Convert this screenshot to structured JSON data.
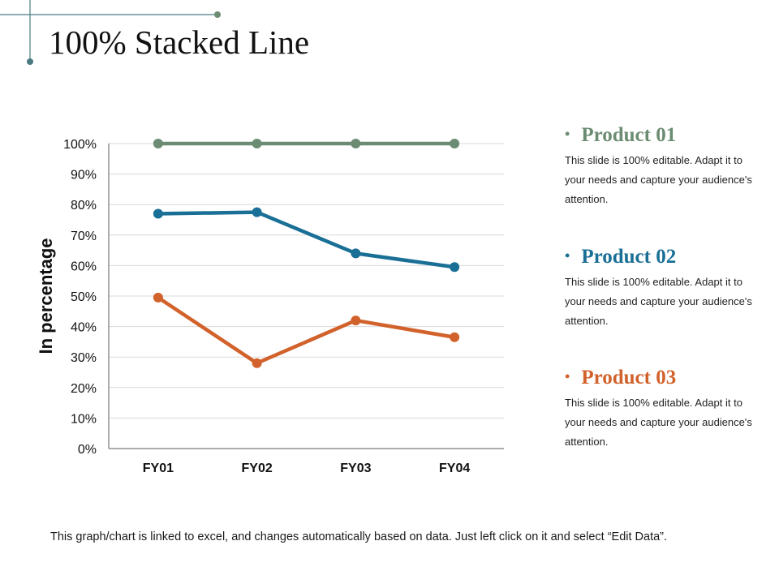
{
  "slide": {
    "title": "100% Stacked Line",
    "footnote": "This graph/chart is linked to excel, and changes automatically based on data. Just left click on it and select “Edit Data”."
  },
  "colors": {
    "accent": "#4a7a82",
    "product_01": "#6b8c72",
    "product_02": "#1a6f96",
    "product_03": "#d2622b",
    "grid": "#d9d9d9",
    "axis": "#595959"
  },
  "legend": [
    {
      "name": "Product 01",
      "bullet": "•",
      "description": "This slide is 100% editable. Adapt it to your needs and capture your audience's attention.",
      "color_key": "product_01"
    },
    {
      "name": "Product 02",
      "bullet": "•",
      "description": "This slide is 100% editable. Adapt it to your needs and capture your audience's attention.",
      "color_key": "product_02"
    },
    {
      "name": "Product 03",
      "bullet": "•",
      "description": "This slide is 100% editable. Adapt it to your needs and capture your audience's attention.",
      "color_key": "product_03"
    }
  ],
  "chart_data": {
    "type": "line",
    "title": "",
    "xlabel": "",
    "ylabel": "In percentage",
    "categories": [
      "FY01",
      "FY02",
      "FY03",
      "FY04"
    ],
    "ylim": [
      0,
      100
    ],
    "yticks": [
      0,
      10,
      20,
      30,
      40,
      50,
      60,
      70,
      80,
      90,
      100
    ],
    "ytick_labels": [
      "0%",
      "10%",
      "20%",
      "30%",
      "40%",
      "50%",
      "60%",
      "70%",
      "80%",
      "90%",
      "100%"
    ],
    "grid": true,
    "legend_position": "right",
    "series": [
      {
        "name": "Product 01",
        "color_key": "product_01",
        "values": [
          100,
          100,
          100,
          100
        ]
      },
      {
        "name": "Product 02",
        "color_key": "product_02",
        "values": [
          77,
          77.5,
          64,
          59.5
        ]
      },
      {
        "name": "Product 03",
        "color_key": "product_03",
        "values": [
          49.5,
          28,
          42,
          36.5
        ]
      }
    ]
  }
}
